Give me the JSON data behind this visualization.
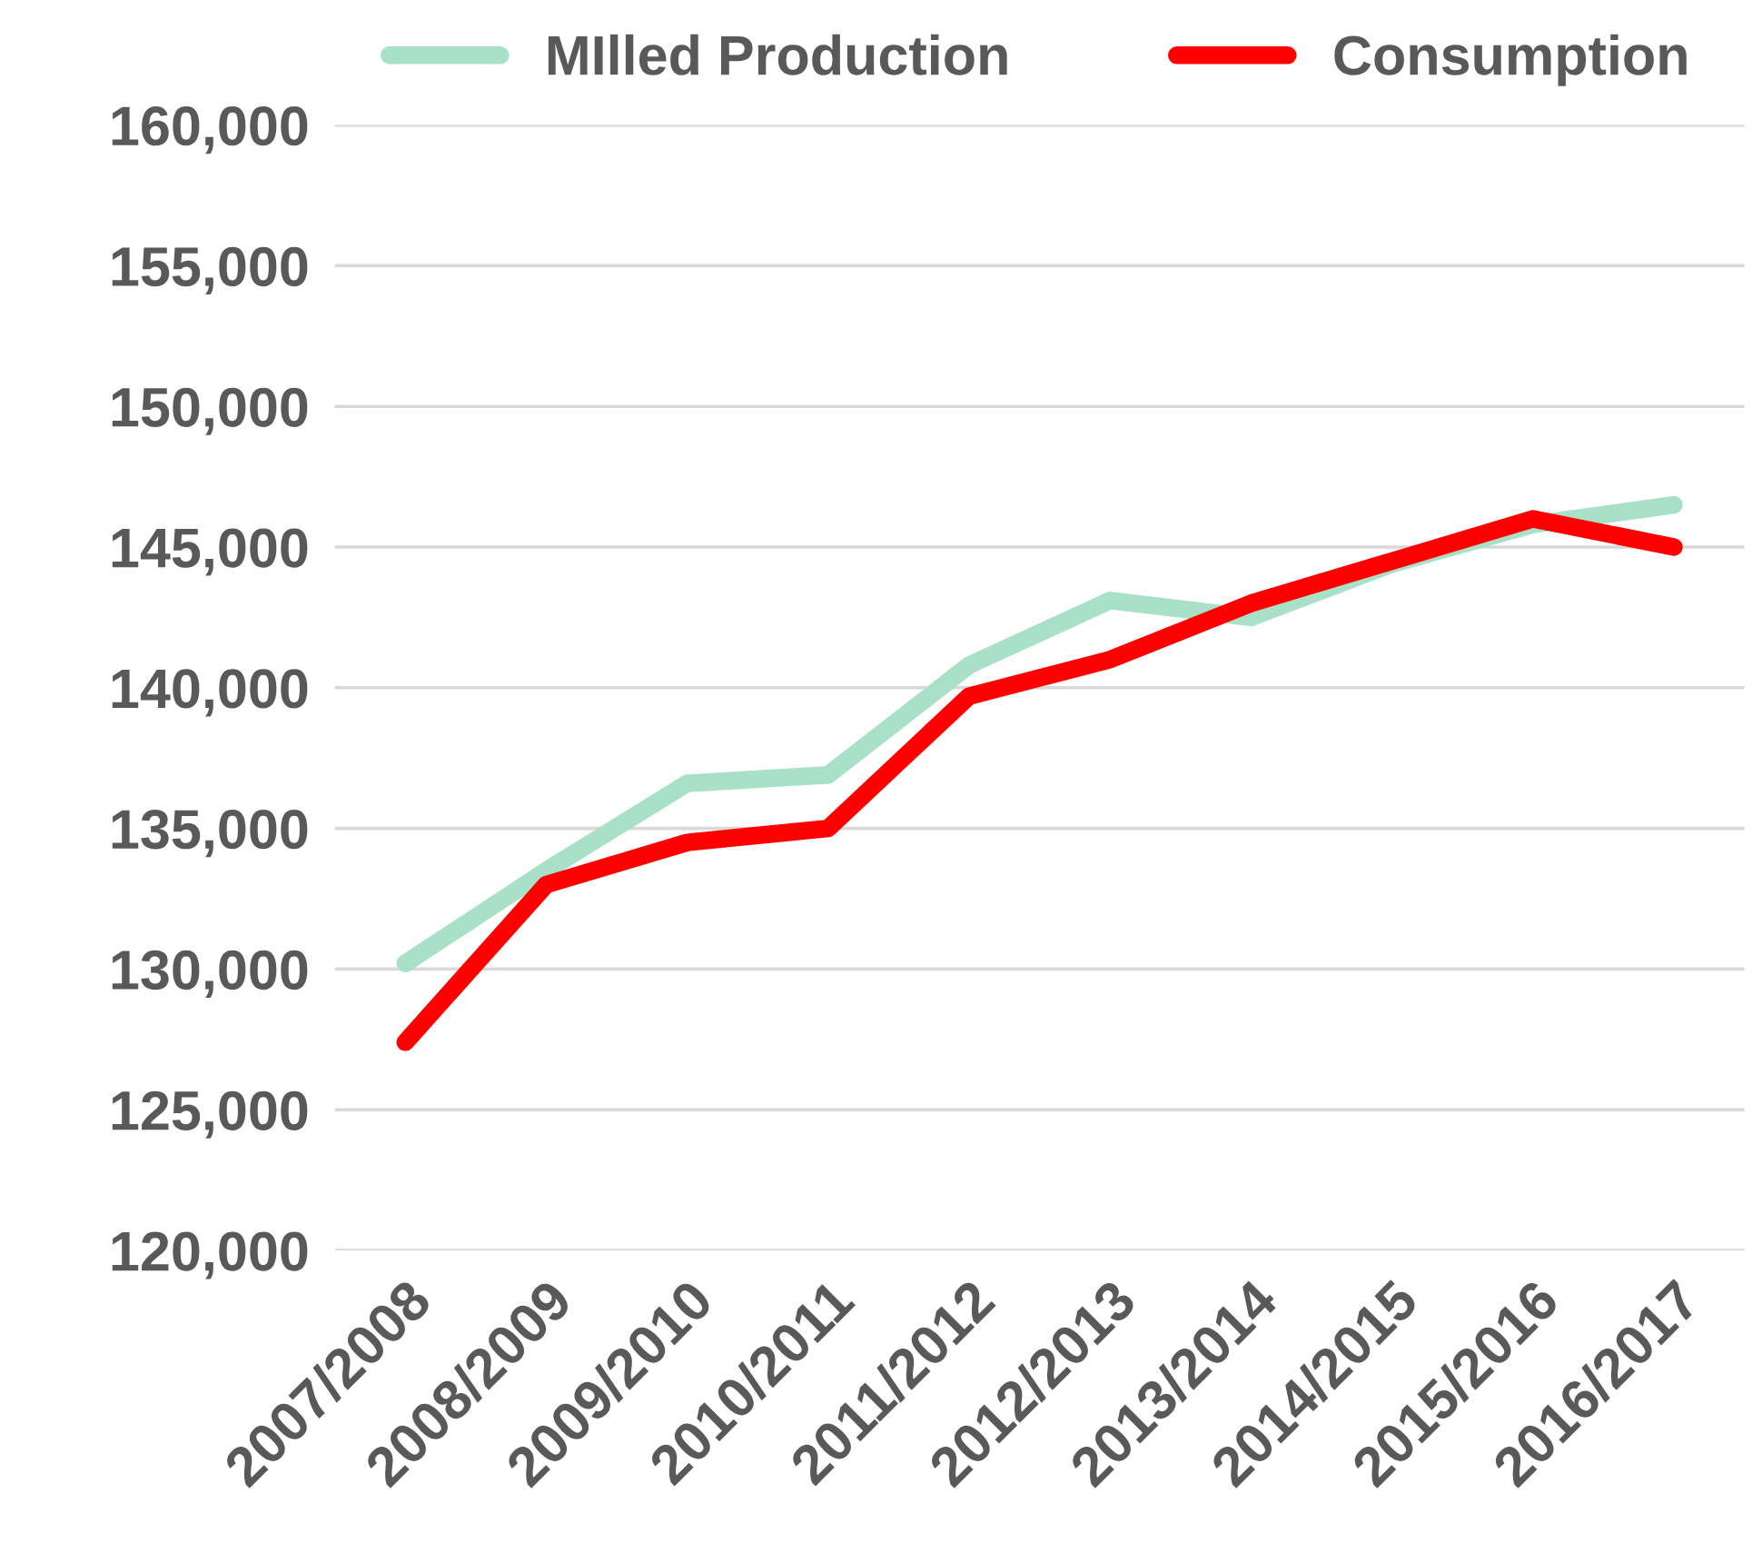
{
  "chart_data": {
    "type": "line",
    "categories": [
      "2007/2008",
      "2008/2009",
      "2009/2010",
      "2010/2011",
      "2011/2012",
      "2012/2013",
      "2013/2014",
      "2014/2015",
      "2015/2016",
      "2016/2017"
    ],
    "series": [
      {
        "name": "MIlled Production",
        "color": "#a8e0c8",
        "values": [
          130200,
          133500,
          136600,
          136900,
          140800,
          143100,
          142500,
          144400,
          145800,
          146500
        ]
      },
      {
        "name": "Consumption",
        "color": "#ff0000",
        "values": [
          127400,
          133000,
          134500,
          135000,
          139700,
          141000,
          143000,
          144500,
          146000,
          145000
        ]
      }
    ],
    "ylim": [
      120000,
      160000
    ],
    "yticks": [
      {
        "value": 120000,
        "label": "120,000"
      },
      {
        "value": 125000,
        "label": "125,000"
      },
      {
        "value": 130000,
        "label": "130,000"
      },
      {
        "value": 135000,
        "label": "135,000"
      },
      {
        "value": 140000,
        "label": "140,000"
      },
      {
        "value": 145000,
        "label": "145,000"
      },
      {
        "value": 150000,
        "label": "150,000"
      },
      {
        "value": 155000,
        "label": "155,000"
      },
      {
        "value": 160000,
        "label": "160,000"
      }
    ],
    "grid": "y",
    "legend": "top",
    "marker": "none",
    "line_style": "solid"
  }
}
